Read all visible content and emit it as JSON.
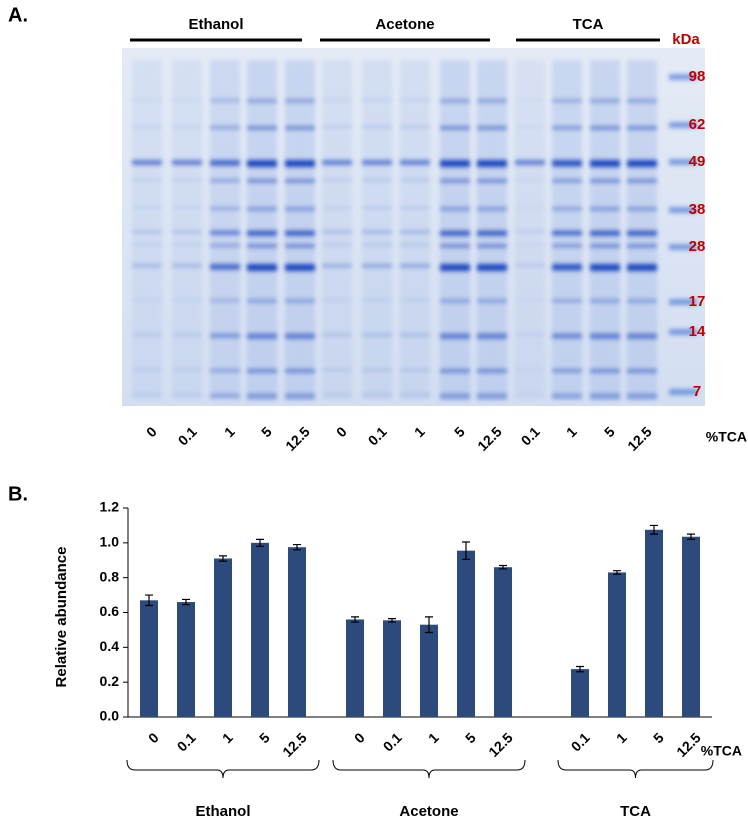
{
  "panel_a": {
    "label": "A.",
    "groups": [
      {
        "name": "Ethanol",
        "lanes": [
          "0",
          "0.1",
          "1",
          "5",
          "12.5"
        ]
      },
      {
        "name": "Acetone",
        "lanes": [
          "0",
          "0.1",
          "1",
          "5",
          "12.5"
        ]
      },
      {
        "name": "TCA",
        "lanes": [
          "0.1",
          "1",
          "5",
          "12.5"
        ]
      }
    ],
    "marker_unit": "kDa",
    "markers": [
      98,
      62,
      49,
      38,
      28,
      17,
      14,
      7
    ],
    "x_label": "%TCA"
  },
  "panel_b_label": "B.",
  "chart_data": {
    "type": "bar",
    "y_label": "Relative abundance",
    "x_label": "%TCA",
    "color": "#2c4a7c",
    "ylim": [
      0,
      1.2
    ],
    "yticks": [
      {
        "value": 0,
        "label": "0.0"
      },
      0.2,
      0.4,
      0.6,
      0.8,
      {
        "value": 1,
        "label": "1.0"
      },
      1.2
    ],
    "groups": [
      {
        "name": "Ethanol",
        "categories": [
          "0",
          "0.1",
          "1",
          "5",
          "12.5"
        ],
        "values": [
          0.67,
          0.66,
          0.91,
          1.0,
          0.975
        ],
        "errors": [
          0.03,
          0.015,
          0.015,
          0.02,
          0.015
        ]
      },
      {
        "name": "Acetone",
        "categories": [
          "0",
          "0.1",
          "1",
          "5",
          "12.5"
        ],
        "values": [
          0.56,
          0.555,
          0.53,
          0.955,
          0.86
        ],
        "errors": [
          0.015,
          0.01,
          0.045,
          0.05,
          0.01
        ]
      },
      {
        "name": "TCA",
        "categories": [
          "0.1",
          "1",
          "5",
          "12.5"
        ],
        "values": [
          0.275,
          0.83,
          1.075,
          1.035
        ],
        "errors": [
          0.015,
          0.01,
          0.025,
          0.015
        ]
      }
    ]
  }
}
